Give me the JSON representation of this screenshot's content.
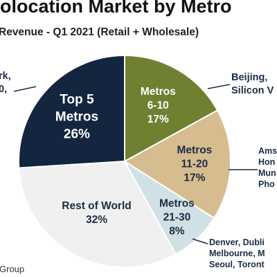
{
  "chart_data": {
    "type": "pie",
    "title": "olocation Market by Metro",
    "subtitle": "Revenue - Q1 2021 (Retail + Wholesale)",
    "slices": [
      {
        "name": "Top 5\nMetros",
        "value": 26,
        "pct_label": "26%",
        "color": "#13253f",
        "text_color": "#ffffff"
      },
      {
        "name": "Metros\n6-10",
        "value": 17,
        "pct_label": "17%",
        "color": "#6f8130",
        "text_color": "#ffffff"
      },
      {
        "name": "Metros\n11-20",
        "value": 17,
        "pct_label": "17%",
        "color": "#d6bd8f",
        "text_color": "#1c2b45"
      },
      {
        "name": "Metros\n21-30",
        "value": 8,
        "pct_label": "8%",
        "color": "#cfe1e5",
        "text_color": "#1c2b45"
      },
      {
        "name": "Rest of World",
        "value": 32,
        "pct_label": "32%",
        "color": "#f0f0f0",
        "text_color": "#1c2b45"
      }
    ],
    "callouts": [
      {
        "lines": [
          "rk,",
          "0,"
        ]
      },
      {
        "lines": [
          "Beijing,",
          "Silicon V"
        ]
      },
      {
        "lines": [
          "Ams",
          "Hon",
          "Mun",
          "Pho"
        ]
      },
      {
        "lines": [
          "Denver, Dubli",
          "Melbourne, M",
          "Seoul, Toront"
        ]
      }
    ]
  },
  "source": "Group"
}
